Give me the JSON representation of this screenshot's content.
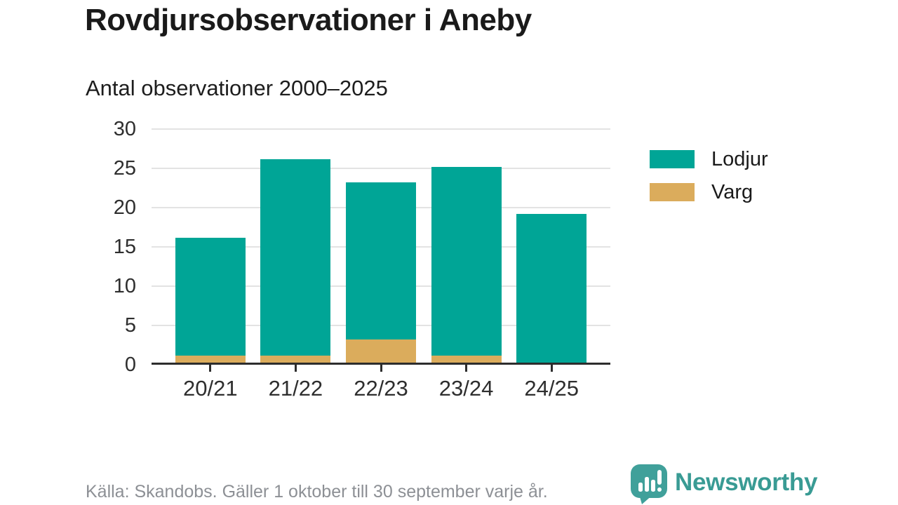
{
  "chart_data": {
    "type": "bar",
    "stacked": true,
    "title": "Rovdjursobservationer i Aneby",
    "subtitle": "Antal observationer 2000–2025",
    "categories": [
      "20/21",
      "21/22",
      "22/23",
      "23/24",
      "24/25"
    ],
    "series": [
      {
        "name": "Lodjur",
        "color": "#00a596",
        "values": [
          15,
          25,
          20,
          24,
          19
        ]
      },
      {
        "name": "Varg",
        "color": "#dbac5c",
        "values": [
          1,
          1,
          3,
          1,
          0
        ]
      }
    ],
    "stack_totals": [
      16,
      26,
      23,
      25,
      19
    ],
    "ylim": [
      0,
      30
    ],
    "yticks": [
      0,
      5,
      10,
      15,
      20,
      25,
      30
    ],
    "grid": true,
    "legend_position": "right"
  },
  "footer": {
    "source": "Källa: Skandobs. Gäller 1 oktober till 30 september varje år."
  },
  "logo": {
    "text": "Newsworthy",
    "brand_color": "#399b94"
  },
  "colors": {
    "background": "#ffffff",
    "title": "#1a1a1a",
    "axis_line": "#2d2d2d",
    "gridline": "#e3e3e3",
    "tick_label": "#2e2e2e",
    "footer_text": "#8d9095"
  }
}
